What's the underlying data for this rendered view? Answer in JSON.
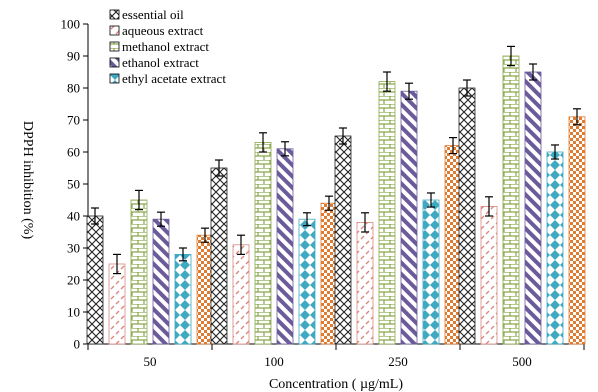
{
  "chart_data": {
    "type": "bar",
    "xlabel": "Concentration ( µg/mL)",
    "ylabel": "DPPH inhibition (%)",
    "ylim": [
      0,
      100
    ],
    "yticks": [
      0,
      10,
      20,
      30,
      40,
      50,
      60,
      70,
      80,
      90,
      100
    ],
    "categories": [
      "50",
      "100",
      "250",
      "500"
    ],
    "error_bars": true,
    "legend_position": "top-left",
    "grid": false,
    "series": [
      {
        "name": "essential oil",
        "pattern": "crosshatch",
        "color": "#222222",
        "values": [
          40,
          55,
          65,
          80
        ],
        "errors": [
          2.5,
          2.5,
          2.5,
          2.5
        ]
      },
      {
        "name": "aqueous extract",
        "pattern": "dashed-diagonal",
        "color": "#d9877f",
        "values": [
          25,
          31,
          38,
          43
        ],
        "errors": [
          3,
          3,
          3,
          3
        ]
      },
      {
        "name": "methanol  extract",
        "pattern": "brick",
        "color": "#8aa84b",
        "values": [
          45,
          63,
          82,
          90
        ],
        "errors": [
          3,
          3,
          3,
          3
        ]
      },
      {
        "name": "ethanol extract",
        "pattern": "wide-diagonal",
        "color": "#6b5b9a",
        "values": [
          39,
          61,
          79,
          85
        ],
        "errors": [
          2.2,
          2.2,
          2.5,
          2.5
        ]
      },
      {
        "name": "ethyl acetate extract",
        "pattern": "diamond",
        "color": "#3fa9c2",
        "values": [
          28,
          39,
          45,
          60
        ],
        "errors": [
          2,
          2,
          2.2,
          2.2
        ]
      },
      {
        "name": "",
        "pattern": "checker",
        "color": "#e07b32",
        "values": [
          34,
          44,
          62,
          71
        ],
        "errors": [
          2.2,
          2.2,
          2.5,
          2.5
        ]
      }
    ]
  }
}
